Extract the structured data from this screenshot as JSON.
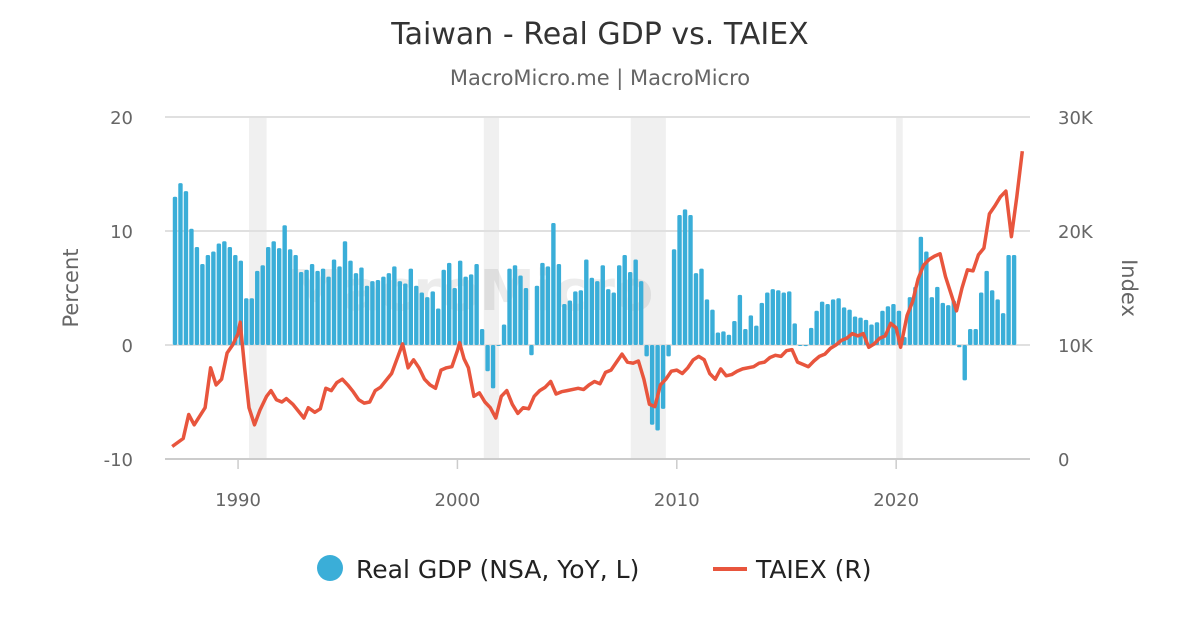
{
  "chart_data": {
    "type": "bar+line",
    "title": "Taiwan - Real GDP vs. TAIEX",
    "subtitle": "MacroMicro.me | MacroMicro",
    "watermark": "MacroMicro",
    "ylabel_left": "Percent",
    "ylabel_right": "Index",
    "ylim_left": [
      -10,
      20
    ],
    "ylim_right": [
      0,
      30000
    ],
    "yticks_left": [
      "20",
      "10",
      "0",
      "-10"
    ],
    "yticks_right": [
      "30K",
      "20K",
      "10K",
      "0"
    ],
    "xlim": [
      1986.67,
      2026.1
    ],
    "xticks": [
      "1990",
      "2000",
      "2010",
      "2020"
    ],
    "grid": true,
    "legend_position": "bottom",
    "colors": {
      "gdp": "#3aaed8",
      "taiex": "#e8553d",
      "shade": "#f0f0f0"
    },
    "shaded_periods": [
      [
        1990.5,
        1991.3
      ],
      [
        2001.2,
        2001.9
      ],
      [
        2007.9,
        2009.5
      ],
      [
        2020.0,
        2020.3
      ]
    ],
    "series": [
      {
        "name": "Real GDP (NSA, YoY, L)",
        "type": "bar",
        "axis": "left",
        "start": "1987Q1",
        "frequency": "quarterly",
        "values": [
          13.0,
          14.2,
          13.5,
          10.2,
          8.6,
          7.1,
          7.9,
          8.2,
          8.9,
          9.1,
          8.6,
          7.9,
          7.4,
          4.1,
          4.1,
          6.5,
          7.0,
          8.6,
          9.1,
          8.5,
          10.5,
          8.4,
          7.9,
          6.4,
          6.6,
          7.1,
          6.5,
          6.7,
          6.0,
          7.5,
          6.9,
          9.1,
          7.4,
          6.3,
          6.8,
          5.2,
          5.6,
          5.7,
          6.0,
          6.3,
          6.9,
          5.6,
          5.4,
          6.7,
          5.2,
          4.6,
          4.2,
          4.7,
          3.2,
          6.6,
          7.2,
          5.0,
          7.4,
          6.0,
          6.2,
          7.1,
          1.4,
          -2.3,
          -3.8,
          0.0,
          1.8,
          6.7,
          7.0,
          6.1,
          5.0,
          -0.9,
          5.2,
          7.2,
          6.9,
          10.7,
          7.1,
          3.6,
          3.9,
          4.7,
          4.8,
          7.5,
          5.9,
          5.6,
          7.0,
          4.9,
          4.6,
          7.0,
          7.9,
          6.4,
          7.5,
          5.6,
          -1.0,
          -7.0,
          -7.5,
          -5.6,
          -1.0,
          8.4,
          11.4,
          11.9,
          11.4,
          6.3,
          6.7,
          4.0,
          3.1,
          1.1,
          1.2,
          0.9,
          2.1,
          4.4,
          1.4,
          2.6,
          1.7,
          3.7,
          4.6,
          4.9,
          4.8,
          4.6,
          4.7,
          1.9,
          0.0,
          -0.1,
          1.5,
          3.0,
          3.8,
          3.6,
          4.0,
          4.1,
          3.3,
          3.1,
          2.5,
          2.4,
          2.2,
          1.8,
          2.0,
          3.0,
          3.4,
          3.6,
          3.0,
          0.7,
          4.2,
          5.1,
          9.5,
          8.2,
          4.2,
          5.1,
          3.7,
          3.5,
          3.9,
          -0.2,
          -3.1,
          1.4,
          1.4,
          4.6,
          6.5,
          4.8,
          4.0,
          2.8,
          7.9,
          7.9
        ]
      },
      {
        "name": "TAIEX (R)",
        "type": "line",
        "axis": "right",
        "x": [
          1987.0,
          1987.5,
          1987.75,
          1988.0,
          1988.5,
          1988.75,
          1989.0,
          1989.25,
          1989.5,
          1989.75,
          1990.0,
          1990.1,
          1990.3,
          1990.5,
          1990.75,
          1991.0,
          1991.3,
          1991.5,
          1991.75,
          1992.0,
          1992.2,
          1992.5,
          1992.75,
          1993.0,
          1993.2,
          1993.5,
          1993.75,
          1994.0,
          1994.25,
          1994.5,
          1994.75,
          1995.0,
          1995.25,
          1995.5,
          1995.75,
          1996.0,
          1996.25,
          1996.5,
          1996.75,
          1997.0,
          1997.25,
          1997.5,
          1997.75,
          1998.0,
          1998.25,
          1998.5,
          1998.75,
          1999.0,
          1999.25,
          1999.5,
          1999.75,
          2000.0,
          2000.1,
          2000.3,
          2000.5,
          2000.75,
          2001.0,
          2001.25,
          2001.5,
          2001.75,
          2002.0,
          2002.25,
          2002.5,
          2002.75,
          2003.0,
          2003.25,
          2003.5,
          2003.75,
          2004.0,
          2004.25,
          2004.5,
          2004.75,
          2005.0,
          2005.5,
          2005.75,
          2006.0,
          2006.25,
          2006.5,
          2006.75,
          2007.0,
          2007.25,
          2007.5,
          2007.75,
          2008.0,
          2008.25,
          2008.5,
          2008.75,
          2009.0,
          2009.25,
          2009.5,
          2009.75,
          2010.0,
          2010.25,
          2010.5,
          2010.75,
          2011.0,
          2011.25,
          2011.5,
          2011.75,
          2012.0,
          2012.25,
          2012.5,
          2012.75,
          2013.0,
          2013.5,
          2013.75,
          2014.0,
          2014.25,
          2014.5,
          2014.75,
          2015.0,
          2015.25,
          2015.5,
          2015.75,
          2016.0,
          2016.25,
          2016.5,
          2016.75,
          2017.0,
          2017.25,
          2017.5,
          2017.75,
          2018.0,
          2018.25,
          2018.5,
          2018.75,
          2019.0,
          2019.25,
          2019.5,
          2019.75,
          2020.0,
          2020.2,
          2020.5,
          2020.75,
          2021.0,
          2021.25,
          2021.5,
          2021.75,
          2022.0,
          2022.25,
          2022.5,
          2022.75,
          2023.0,
          2023.25,
          2023.5,
          2023.75,
          2024.0,
          2024.25,
          2024.5,
          2024.75,
          2025.0,
          2025.25,
          2025.5,
          2025.75
        ],
        "values": [
          1100,
          1800,
          3900,
          3000,
          4500,
          8000,
          6500,
          7000,
          9300,
          10000,
          11000,
          12000,
          8000,
          4500,
          3000,
          4300,
          5500,
          6000,
          5200,
          5000,
          5300,
          4800,
          4200,
          3600,
          4500,
          4100,
          4400,
          6200,
          6000,
          6700,
          7000,
          6500,
          5900,
          5200,
          4900,
          5000,
          6000,
          6300,
          6900,
          7500,
          8800,
          10100,
          8000,
          8700,
          8000,
          7000,
          6500,
          6200,
          7800,
          8000,
          8100,
          9500,
          10200,
          8800,
          8000,
          5500,
          5800,
          5000,
          4500,
          3600,
          5500,
          6000,
          4800,
          4000,
          4500,
          4400,
          5500,
          6000,
          6300,
          6800,
          5700,
          5900,
          6000,
          6200,
          6100,
          6500,
          6800,
          6600,
          7600,
          7800,
          8500,
          9200,
          8500,
          8400,
          8600,
          7000,
          4800,
          4600,
          6500,
          7000,
          7700,
          7800,
          7500,
          8000,
          8700,
          9000,
          8700,
          7500,
          7000,
          7900,
          7300,
          7400,
          7700,
          7900,
          8100,
          8400,
          8500,
          8900,
          9100,
          9000,
          9500,
          9600,
          8500,
          8300,
          8100,
          8600,
          9000,
          9200,
          9700,
          10000,
          10400,
          10600,
          11000,
          10800,
          11000,
          9800,
          10100,
          10600,
          10800,
          11900,
          11500,
          9800,
          12600,
          13800,
          15800,
          17000,
          17500,
          17800,
          18000,
          16000,
          14500,
          13000,
          15000,
          16600,
          16500,
          17900,
          18500,
          21500,
          22200,
          23000,
          23500,
          19500,
          23000,
          27000
        ]
      }
    ]
  }
}
